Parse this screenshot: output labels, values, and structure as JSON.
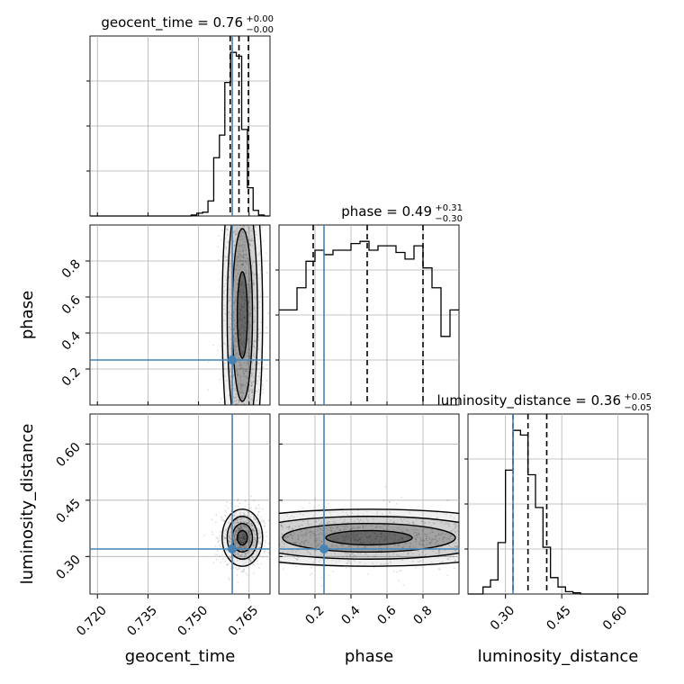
{
  "chart_data": {
    "type": "corner",
    "parameters": [
      "geocent_time",
      "phase",
      "luminosity_distance"
    ],
    "truths": {
      "geocent_time": 0.76,
      "phase": 0.25,
      "luminosity_distance": 0.32
    },
    "marginals": [
      {
        "parameter": "geocent_time",
        "title": "geocent_time = 0.76",
        "sup": "+0.00",
        "sub": "−0.00",
        "quantiles": [
          0.7594,
          0.762,
          0.7648
        ],
        "bins": [
          0.7178,
          0.7194,
          0.7211,
          0.7228,
          0.7244,
          0.7261,
          0.7278,
          0.7295,
          0.7312,
          0.7328,
          0.7345,
          0.7362,
          0.7378,
          0.7395,
          0.7412,
          0.7428,
          0.7445,
          0.7462,
          0.7478,
          0.7495,
          0.7512,
          0.7528,
          0.7545,
          0.7562,
          0.7578,
          0.7595,
          0.7612,
          0.7628,
          0.7645,
          0.7662,
          0.7678,
          0.7695,
          0.7712
        ],
        "counts": [
          0,
          0,
          0,
          0,
          0,
          0,
          0,
          0,
          0,
          0,
          0,
          0,
          0,
          0,
          0,
          0,
          0,
          0,
          0.5,
          1.5,
          2.0,
          8.0,
          31.0,
          43.0,
          71.0,
          87.0,
          85.0,
          46.0,
          15.0,
          3.0,
          0.5,
          0
        ],
        "xlim": [
          0.7178,
          0.7712
        ]
      },
      {
        "parameter": "phase",
        "title": "phase = 0.49",
        "sup": "+0.31",
        "sub": "−0.30",
        "quantiles": [
          0.19,
          0.49,
          0.8
        ],
        "bins": [
          0.0,
          0.05,
          0.1,
          0.15,
          0.2,
          0.25,
          0.3,
          0.35,
          0.4,
          0.45,
          0.5,
          0.55,
          0.6,
          0.65,
          0.7,
          0.75,
          0.8,
          0.85,
          0.9,
          0.95,
          1.0
        ],
        "counts": [
          43,
          43,
          53,
          65,
          70,
          68,
          70,
          70,
          73,
          74,
          70,
          72,
          72,
          69,
          66,
          72,
          62,
          53,
          31,
          43
        ],
        "xlim": [
          0.0,
          1.0
        ],
        "xticks": [
          0.2,
          0.4,
          0.6,
          0.8
        ],
        "xticklabels": [
          "0.2",
          "0.4",
          "0.6",
          "0.8"
        ]
      },
      {
        "parameter": "luminosity_distance",
        "title": "luminosity_distance = 0.36",
        "sup": "+0.05",
        "sub": "−0.05",
        "quantiles": [
          0.32,
          0.36,
          0.41
        ],
        "bins": [
          0.2,
          0.22,
          0.24,
          0.26,
          0.28,
          0.3,
          0.32,
          0.34,
          0.36,
          0.38,
          0.4,
          0.42,
          0.44,
          0.46,
          0.48,
          0.5,
          0.52,
          0.54,
          0.56,
          0.58,
          0.6,
          0.62,
          0.64,
          0.66,
          0.68
        ],
        "counts": [
          0,
          0,
          3,
          6,
          22,
          53,
          70,
          68,
          51,
          37,
          20,
          7,
          3,
          1,
          0.5,
          0,
          0,
          0,
          0,
          0,
          0,
          0,
          0,
          0
        ],
        "xlim": [
          0.2,
          0.68
        ],
        "xticks": [
          0.3,
          0.45,
          0.6
        ],
        "xticklabels": [
          "0.30",
          "0.45",
          "0.60"
        ]
      }
    ],
    "pair_panels": [
      {
        "x": "geocent_time",
        "y": "phase",
        "center": [
          0.763,
          0.5
        ],
        "spread": [
          0.003,
          0.26
        ]
      },
      {
        "x": "geocent_time",
        "y": "luminosity_distance",
        "center": [
          0.763,
          0.35
        ],
        "spread": [
          0.003,
          0.038
        ]
      },
      {
        "x": "phase",
        "y": "luminosity_distance",
        "center": [
          0.5,
          0.35
        ],
        "spread": [
          0.3,
          0.038
        ]
      }
    ],
    "axes": {
      "geocent_time": {
        "xticks": [
          0.72,
          0.735,
          0.75,
          0.765
        ],
        "xticklabels": [
          "0.720",
          "0.735",
          "0.750",
          "0.765"
        ],
        "lim": [
          0.7178,
          0.7712
        ]
      },
      "phase": {
        "yticks": [
          0.2,
          0.4,
          0.6,
          0.8
        ],
        "yticklabels": [
          "0.2",
          "0.4",
          "0.6",
          "0.8"
        ],
        "lim": [
          0.0,
          1.0
        ]
      },
      "luminosity_distance": {
        "yticks": [
          0.3,
          0.45,
          0.6
        ],
        "yticklabels": [
          "0.30",
          "0.45",
          "0.60"
        ],
        "lim": [
          0.2,
          0.68
        ]
      }
    },
    "xlabels": [
      "geocent_time",
      "phase",
      "luminosity_distance"
    ],
    "ylabels": [
      "phase",
      "luminosity_distance"
    ],
    "grid": true,
    "colors": {
      "truth": "#4682b4",
      "hist": "#000000",
      "grid": "#b0b0b0"
    }
  }
}
